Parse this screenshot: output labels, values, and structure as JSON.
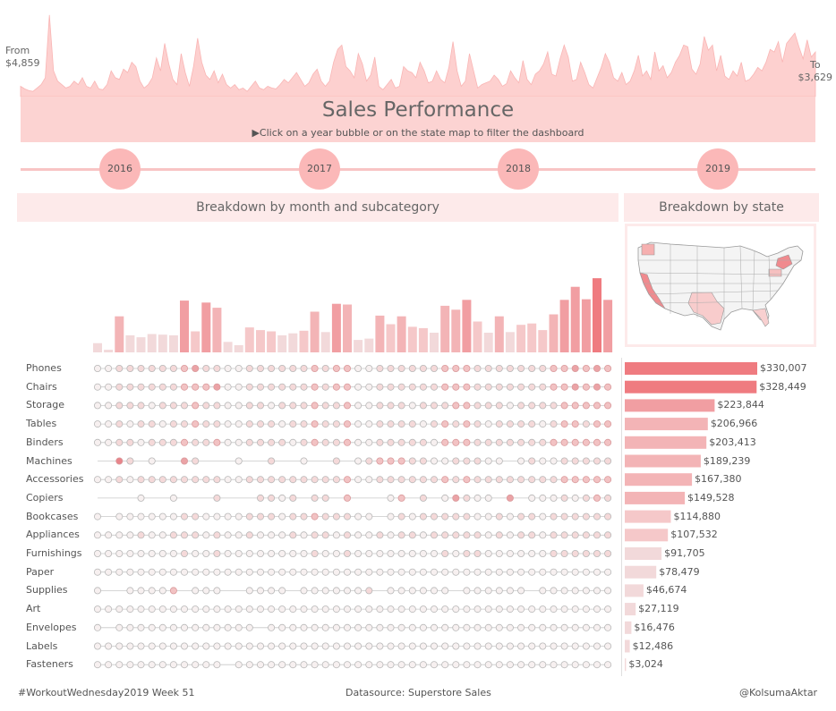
{
  "header": {
    "title": "Sales Performance",
    "subtitle": "▶Click on a year bubble or on the state map to filter the dashboard",
    "from_label": "From",
    "from_value": "$4,859",
    "to_label": "To",
    "to_value": "$3,629"
  },
  "years": [
    "2016",
    "2017",
    "2018",
    "2019"
  ],
  "panels": {
    "month_title": "Breakdown by month and subcategory",
    "state_title": "Breakdown by state"
  },
  "footer": {
    "left": "#WorkoutWednesday2019 Week 51",
    "center": "Datasource: Superstore Sales",
    "right": "@KolsumaAktar"
  },
  "colors": {
    "accent": "#f07a7f",
    "band": "#fcd3d2",
    "spark": "#fdd0cf",
    "light": "#fdeaea",
    "dot_empty": "#f5f5f5",
    "dot_border": "#b8b8b8"
  },
  "chart_data": [
    {
      "type": "area",
      "name": "daily-sales-sparkline",
      "x_range": [
        "2016-01",
        "2019-12"
      ],
      "values": [
        12,
        9,
        7,
        6,
        10,
        14,
        22,
        95,
        30,
        18,
        14,
        10,
        12,
        18,
        14,
        22,
        12,
        10,
        18,
        9,
        8,
        14,
        30,
        22,
        20,
        32,
        28,
        40,
        35,
        18,
        10,
        14,
        22,
        45,
        30,
        62,
        38,
        20,
        14,
        50,
        28,
        12,
        35,
        68,
        40,
        25,
        20,
        30,
        16,
        26,
        14,
        10,
        14,
        8,
        10,
        6,
        12,
        18,
        10,
        8,
        12,
        10,
        9,
        14,
        20,
        16,
        22,
        28,
        20,
        12,
        16,
        26,
        32,
        18,
        12,
        18,
        40,
        55,
        60,
        35,
        30,
        22,
        50,
        38,
        18,
        25,
        46,
        12,
        8,
        14,
        20,
        10,
        12,
        35,
        30,
        28,
        22,
        40,
        30,
        16,
        18,
        30,
        20,
        16,
        34,
        64,
        30,
        12,
        18,
        50,
        30,
        10,
        14,
        16,
        18,
        25,
        20,
        12,
        15,
        30,
        22,
        16,
        42,
        20,
        14,
        26,
        30,
        38,
        52,
        26,
        24,
        44,
        60,
        46,
        18,
        20,
        40,
        28,
        14,
        10,
        22,
        34,
        50,
        40,
        22,
        18,
        28,
        14,
        18,
        30,
        48,
        24,
        30,
        20,
        52,
        30,
        36,
        22,
        28,
        40,
        48,
        60,
        58,
        32,
        26,
        38,
        70,
        54,
        60,
        30,
        48,
        24,
        20,
        30,
        24,
        40,
        18,
        20,
        26,
        34,
        30,
        40,
        55,
        52,
        64,
        40,
        62,
        68,
        74,
        58,
        44,
        66,
        46,
        52
      ],
      "ylim": [
        0,
        100
      ]
    },
    {
      "type": "bar",
      "name": "monthly-sales",
      "categories": [
        "2016-01",
        "2016-02",
        "2016-03",
        "2016-04",
        "2016-05",
        "2016-06",
        "2016-07",
        "2016-08",
        "2016-09",
        "2016-10",
        "2016-11",
        "2016-12",
        "2017-01",
        "2017-02",
        "2017-03",
        "2017-04",
        "2017-05",
        "2017-06",
        "2017-07",
        "2017-08",
        "2017-09",
        "2017-10",
        "2017-11",
        "2017-12",
        "2018-01",
        "2018-02",
        "2018-03",
        "2018-04",
        "2018-05",
        "2018-06",
        "2018-07",
        "2018-08",
        "2018-09",
        "2018-10",
        "2018-11",
        "2018-12",
        "2019-01",
        "2019-02",
        "2019-03",
        "2019-04",
        "2019-05",
        "2019-06",
        "2019-07",
        "2019-08",
        "2019-09",
        "2019-10",
        "2019-11",
        "2019-12"
      ],
      "values": [
        14,
        4,
        55,
        26,
        23,
        28,
        27,
        26,
        79,
        32,
        76,
        68,
        16,
        11,
        38,
        34,
        32,
        26,
        29,
        33,
        62,
        31,
        74,
        73,
        19,
        21,
        56,
        43,
        55,
        39,
        37,
        30,
        71,
        65,
        80,
        47,
        30,
        55,
        31,
        42,
        44,
        34,
        58,
        80,
        100,
        81,
        113,
        80
      ],
      "ylim": [
        0,
        120
      ]
    },
    {
      "type": "bar",
      "name": "sales-by-subcategory",
      "categories": [
        "Phones",
        "Chairs",
        "Storage",
        "Tables",
        "Binders",
        "Machines",
        "Accessories",
        "Copiers",
        "Bookcases",
        "Appliances",
        "Furnishings",
        "Paper",
        "Supplies",
        "Art",
        "Envelopes",
        "Labels",
        "Fasteners"
      ],
      "values": [
        330007,
        328449,
        223844,
        206966,
        203413,
        189239,
        167380,
        149528,
        114880,
        107532,
        91705,
        78479,
        46674,
        27119,
        16476,
        12486,
        3024
      ],
      "value_labels": [
        "$330,007",
        "$328,449",
        "$223,844",
        "$206,966",
        "$203,413",
        "$189,239",
        "$167,380",
        "$149,528",
        "$114,880",
        "$107,532",
        "$91,705",
        "$78,479",
        "$46,674",
        "$27,119",
        "$16,476",
        "$12,486",
        "$3,024"
      ],
      "xlim": [
        0,
        330007
      ]
    },
    {
      "type": "heatmap",
      "name": "subcategory-month-dots",
      "rows": [
        "Phones",
        "Chairs",
        "Storage",
        "Tables",
        "Binders",
        "Machines",
        "Accessories",
        "Copiers",
        "Bookcases",
        "Appliances",
        "Furnishings",
        "Paper",
        "Supplies",
        "Art",
        "Envelopes",
        "Labels",
        "Fasteners"
      ],
      "columns": 48,
      "scale": "0 = no sales, 1-5 = intensity",
      "cells": [
        [
          1,
          1,
          2,
          2,
          2,
          2,
          2,
          2,
          3,
          4,
          2,
          2,
          1,
          1,
          2,
          2,
          2,
          2,
          2,
          2,
          3,
          2,
          3,
          3,
          1,
          1,
          2,
          2,
          2,
          2,
          2,
          2,
          3,
          3,
          3,
          2,
          2,
          2,
          2,
          2,
          2,
          2,
          3,
          3,
          4,
          3,
          4,
          3
        ],
        [
          1,
          1,
          2,
          2,
          2,
          2,
          2,
          2,
          3,
          3,
          3,
          4,
          1,
          1,
          2,
          2,
          2,
          2,
          2,
          2,
          3,
          2,
          3,
          3,
          1,
          1,
          2,
          2,
          2,
          2,
          2,
          2,
          3,
          3,
          3,
          2,
          2,
          2,
          2,
          2,
          2,
          2,
          3,
          3,
          4,
          3,
          4,
          3
        ],
        [
          1,
          1,
          2,
          2,
          2,
          1,
          2,
          2,
          2,
          3,
          2,
          2,
          1,
          1,
          2,
          2,
          1,
          2,
          2,
          2,
          3,
          2,
          2,
          3,
          1,
          1,
          2,
          2,
          2,
          1,
          2,
          2,
          2,
          3,
          3,
          2,
          2,
          2,
          1,
          2,
          2,
          2,
          2,
          3,
          3,
          3,
          3,
          3
        ],
        [
          1,
          1,
          2,
          1,
          2,
          2,
          1,
          2,
          2,
          3,
          2,
          2,
          1,
          1,
          2,
          2,
          2,
          1,
          2,
          2,
          3,
          2,
          2,
          3,
          1,
          1,
          2,
          2,
          2,
          2,
          1,
          2,
          3,
          2,
          3,
          2,
          1,
          2,
          2,
          2,
          2,
          1,
          2,
          3,
          3,
          2,
          3,
          3
        ],
        [
          1,
          1,
          2,
          2,
          1,
          2,
          2,
          2,
          3,
          2,
          2,
          3,
          1,
          1,
          2,
          2,
          2,
          2,
          1,
          2,
          3,
          2,
          2,
          3,
          1,
          1,
          2,
          2,
          2,
          2,
          2,
          1,
          3,
          3,
          3,
          2,
          2,
          2,
          2,
          2,
          2,
          2,
          3,
          3,
          3,
          3,
          3,
          3
        ],
        [
          0,
          0,
          5,
          2,
          0,
          1,
          0,
          0,
          4,
          2,
          0,
          0,
          0,
          1,
          0,
          0,
          2,
          0,
          0,
          1,
          0,
          0,
          2,
          0,
          1,
          2,
          3,
          3,
          3,
          2,
          2,
          1,
          1,
          2,
          2,
          2,
          1,
          1,
          0,
          1,
          2,
          1,
          1,
          2,
          2,
          2,
          2,
          2
        ],
        [
          1,
          1,
          2,
          1,
          2,
          2,
          2,
          2,
          2,
          2,
          2,
          2,
          1,
          1,
          2,
          2,
          2,
          2,
          2,
          2,
          2,
          2,
          2,
          3,
          1,
          1,
          2,
          2,
          2,
          2,
          2,
          2,
          3,
          2,
          3,
          2,
          2,
          2,
          2,
          2,
          2,
          2,
          2,
          3,
          3,
          3,
          3,
          3
        ],
        [
          0,
          0,
          0,
          0,
          1,
          0,
          0,
          1,
          0,
          0,
          0,
          2,
          0,
          0,
          0,
          2,
          2,
          1,
          2,
          0,
          2,
          2,
          0,
          3,
          0,
          0,
          0,
          1,
          3,
          0,
          2,
          0,
          1,
          4,
          2,
          1,
          1,
          0,
          4,
          0,
          1,
          1,
          1,
          2,
          1,
          2,
          3,
          2
        ],
        [
          1,
          0,
          1,
          1,
          1,
          1,
          1,
          1,
          2,
          2,
          1,
          1,
          1,
          1,
          2,
          2,
          2,
          1,
          2,
          2,
          3,
          2,
          2,
          2,
          1,
          1,
          0,
          1,
          2,
          1,
          2,
          2,
          2,
          2,
          2,
          1,
          1,
          2,
          1,
          2,
          2,
          1,
          2,
          2,
          2,
          2,
          2,
          2
        ],
        [
          1,
          1,
          1,
          1,
          2,
          1,
          1,
          2,
          2,
          2,
          1,
          2,
          1,
          1,
          2,
          1,
          1,
          1,
          2,
          1,
          2,
          2,
          1,
          2,
          1,
          1,
          2,
          1,
          2,
          2,
          1,
          2,
          2,
          2,
          2,
          2,
          1,
          2,
          1,
          2,
          2,
          1,
          2,
          2,
          2,
          2,
          2,
          2
        ],
        [
          1,
          1,
          1,
          1,
          1,
          1,
          1,
          1,
          2,
          1,
          1,
          2,
          1,
          1,
          1,
          1,
          1,
          1,
          1,
          1,
          2,
          1,
          1,
          2,
          1,
          1,
          1,
          1,
          1,
          1,
          1,
          1,
          2,
          1,
          2,
          2,
          1,
          1,
          1,
          1,
          1,
          1,
          2,
          2,
          2,
          2,
          2,
          2
        ],
        [
          1,
          1,
          1,
          1,
          1,
          1,
          1,
          1,
          1,
          1,
          1,
          1,
          1,
          1,
          1,
          1,
          1,
          1,
          1,
          1,
          1,
          1,
          1,
          1,
          1,
          1,
          1,
          1,
          1,
          1,
          1,
          1,
          1,
          1,
          1,
          1,
          1,
          1,
          1,
          1,
          1,
          1,
          1,
          1,
          1,
          1,
          1,
          1
        ],
        [
          1,
          0,
          0,
          1,
          1,
          1,
          1,
          3,
          0,
          1,
          1,
          1,
          0,
          0,
          1,
          1,
          1,
          1,
          0,
          1,
          1,
          1,
          1,
          1,
          1,
          2,
          0,
          1,
          1,
          1,
          1,
          1,
          1,
          0,
          1,
          1,
          1,
          1,
          1,
          1,
          0,
          1,
          1,
          1,
          1,
          1,
          1,
          1
        ],
        [
          1,
          1,
          1,
          1,
          1,
          1,
          1,
          1,
          1,
          1,
          1,
          1,
          1,
          1,
          1,
          1,
          1,
          1,
          1,
          1,
          1,
          1,
          1,
          1,
          1,
          1,
          1,
          1,
          1,
          1,
          1,
          1,
          1,
          1,
          1,
          1,
          1,
          1,
          1,
          1,
          1,
          1,
          1,
          1,
          1,
          1,
          1,
          1
        ],
        [
          1,
          0,
          1,
          1,
          1,
          1,
          1,
          1,
          1,
          1,
          1,
          1,
          1,
          1,
          1,
          0,
          1,
          1,
          1,
          1,
          1,
          1,
          1,
          1,
          1,
          1,
          1,
          1,
          1,
          1,
          1,
          1,
          1,
          1,
          1,
          1,
          1,
          1,
          1,
          1,
          1,
          1,
          1,
          1,
          1,
          1,
          1,
          1
        ],
        [
          1,
          1,
          1,
          1,
          1,
          1,
          1,
          1,
          1,
          1,
          1,
          1,
          1,
          1,
          1,
          1,
          1,
          1,
          1,
          1,
          1,
          1,
          1,
          1,
          1,
          1,
          1,
          1,
          1,
          1,
          1,
          1,
          1,
          1,
          1,
          1,
          1,
          1,
          1,
          1,
          1,
          1,
          1,
          1,
          1,
          1,
          1,
          1
        ],
        [
          1,
          1,
          1,
          1,
          1,
          1,
          1,
          1,
          1,
          1,
          1,
          1,
          0,
          1,
          1,
          1,
          1,
          1,
          1,
          1,
          1,
          1,
          1,
          1,
          1,
          1,
          1,
          1,
          1,
          1,
          1,
          1,
          1,
          1,
          1,
          1,
          1,
          1,
          1,
          1,
          1,
          1,
          1,
          1,
          1,
          1,
          1,
          1
        ]
      ]
    }
  ]
}
